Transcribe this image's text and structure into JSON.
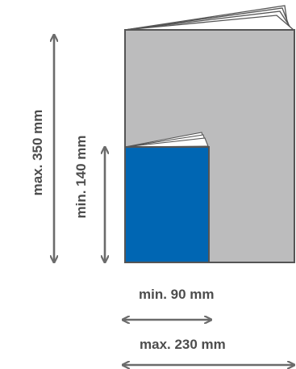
{
  "labels": {
    "max_height": "max. 350 mm",
    "min_height": "min. 140 mm",
    "min_width": "min. 90 mm",
    "max_width": "max. 230 mm"
  },
  "colors": {
    "large_book": "#bcbcbd",
    "small_book": "#0066b3",
    "outline": "#555555",
    "arrow": "#6b6b6b",
    "text": "#4d4d4d"
  }
}
